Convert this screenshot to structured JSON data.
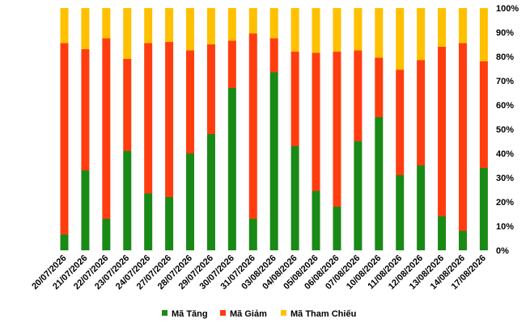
{
  "chart_data": {
    "type": "bar",
    "stacked": true,
    "normalized": true,
    "categories": [
      "20/07/2026",
      "21/07/2026",
      "22/07/2026",
      "23/07/2026",
      "24/07/2026",
      "27/07/2026",
      "28/07/2026",
      "29/07/2026",
      "30/07/2026",
      "31/07/2026",
      "03/08/2026",
      "04/08/2026",
      "05/08/2026",
      "06/08/2026",
      "07/08/2026",
      "10/08/2026",
      "11/08/2026",
      "12/08/2026",
      "13/08/2026",
      "14/08/2026",
      "17/08/2026"
    ],
    "series": [
      {
        "name": "Mã Tăng",
        "color": "#1a8a16",
        "values": [
          6.5,
          33,
          13,
          41,
          23.5,
          22,
          40,
          48,
          67,
          13,
          73.5,
          43,
          24.5,
          18,
          45,
          55,
          31,
          35,
          14,
          8,
          34
        ]
      },
      {
        "name": "Mã Giảm",
        "color": "#ff3d0f",
        "values": [
          79,
          50,
          74.5,
          38,
          62,
          64,
          42.5,
          37,
          19.5,
          76.5,
          14,
          39,
          57,
          64,
          37.5,
          24.5,
          43.5,
          43.5,
          70,
          77.5,
          44
        ]
      },
      {
        "name": "Mã Tham Chiếu",
        "color": "#ffc000",
        "values": [
          14.5,
          17,
          12.5,
          21,
          14.5,
          14,
          17.5,
          15,
          13.5,
          10.5,
          12.5,
          18,
          18.5,
          18,
          17.5,
          20.5,
          25.5,
          21.5,
          16,
          14.5,
          22
        ]
      }
    ],
    "yticks": [
      "0%",
      "10%",
      "20%",
      "30%",
      "40%",
      "50%",
      "60%",
      "70%",
      "80%",
      "90%",
      "100%"
    ],
    "ylim": [
      0,
      100
    ],
    "xlabel": "",
    "ylabel": "",
    "grid": false,
    "legend_position": "bottom"
  }
}
